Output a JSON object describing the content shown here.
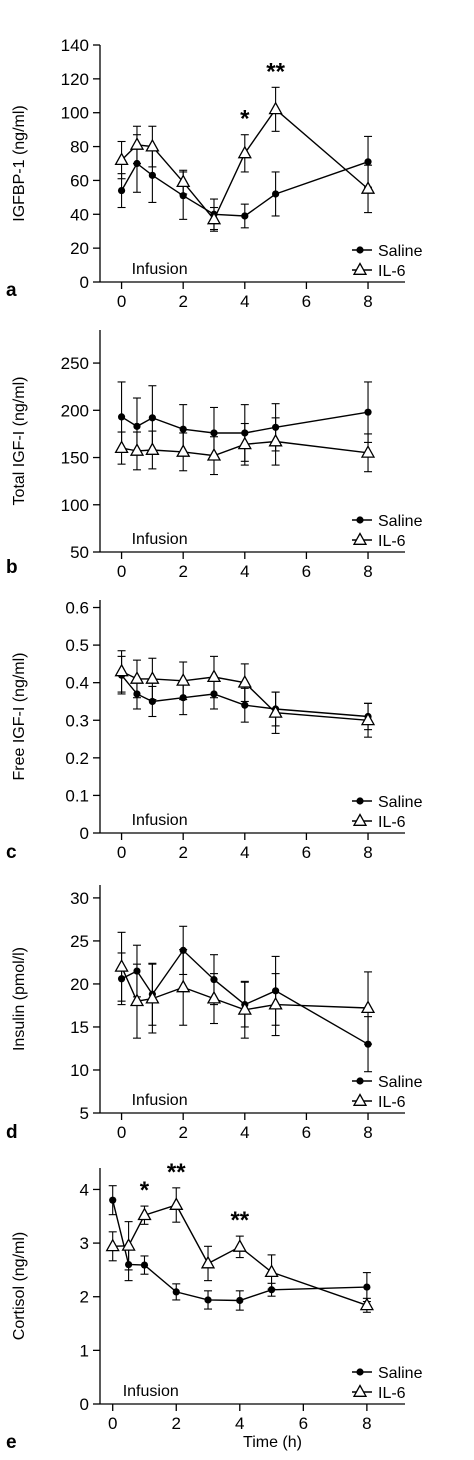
{
  "chart_data": [
    {
      "type": "line",
      "panel": "a",
      "ylabel": "IGFBP-1 (ng/ml)",
      "xlabel": "",
      "xlim": [
        -0.7,
        9.2
      ],
      "ylim": [
        0,
        140
      ],
      "yticks": [
        0,
        20,
        40,
        60,
        80,
        100,
        120,
        140
      ],
      "xticks": [
        0,
        2,
        4,
        6,
        8
      ],
      "annotation": "Infusion",
      "legend_position": "bottom-right",
      "series": [
        {
          "name": "Saline",
          "marker": "circle",
          "x": [
            0,
            0.5,
            1,
            2,
            3,
            4,
            5,
            8
          ],
          "y": [
            54,
            70,
            63,
            51,
            40,
            39,
            52,
            71
          ],
          "err": [
            10,
            17,
            16,
            14,
            9,
            7,
            13,
            15
          ]
        },
        {
          "name": "IL-6",
          "marker": "triangle",
          "x": [
            0,
            0.5,
            1,
            2,
            3,
            4,
            5,
            8
          ],
          "y": [
            72,
            81,
            80,
            59,
            37,
            76,
            102,
            55
          ],
          "err": [
            11,
            11,
            12,
            7,
            7,
            11,
            13,
            14
          ]
        }
      ],
      "significance": [
        {
          "x": 4,
          "label": "*"
        },
        {
          "x": 5,
          "label": "**"
        }
      ]
    },
    {
      "type": "line",
      "panel": "b",
      "ylabel": "Total IGF-I (ng/ml)",
      "xlabel": "",
      "xlim": [
        -0.7,
        9.2
      ],
      "ylim": [
        50,
        285
      ],
      "yticks": [
        50,
        100,
        150,
        200,
        250
      ],
      "xticks": [
        0,
        2,
        4,
        6,
        8
      ],
      "annotation": "Infusion",
      "legend_position": "bottom-right",
      "series": [
        {
          "name": "Saline",
          "marker": "circle",
          "x": [
            0,
            0.5,
            1,
            2,
            3,
            4,
            5,
            8
          ],
          "y": [
            193,
            183,
            192,
            180,
            176,
            176,
            182,
            198
          ],
          "err": [
            37,
            30,
            34,
            26,
            27,
            30,
            25,
            32
          ]
        },
        {
          "name": "IL-6",
          "marker": "triangle",
          "x": [
            0,
            0.5,
            1,
            2,
            3,
            4,
            5,
            8
          ],
          "y": [
            160,
            157,
            158,
            156,
            152,
            164,
            167,
            155
          ],
          "err": [
            17,
            20,
            20,
            20,
            20,
            22,
            25,
            20
          ]
        }
      ],
      "significance": []
    },
    {
      "type": "line",
      "panel": "c",
      "ylabel": "Free IGF-I (ng/ml)",
      "xlabel": "",
      "xlim": [
        -0.7,
        9.2
      ],
      "ylim": [
        0,
        0.62
      ],
      "yticks": [
        0,
        0.1,
        0.2,
        0.3,
        0.4,
        0.5,
        0.6
      ],
      "xticks": [
        0,
        2,
        4,
        6,
        8
      ],
      "annotation": "Infusion",
      "legend_position": "bottom-right",
      "series": [
        {
          "name": "Saline",
          "marker": "circle",
          "x": [
            0,
            0.5,
            1,
            2,
            3,
            4,
            5,
            8
          ],
          "y": [
            0.42,
            0.37,
            0.35,
            0.36,
            0.37,
            0.34,
            0.33,
            0.31
          ],
          "err": [
            0.05,
            0.04,
            0.04,
            0.045,
            0.04,
            0.045,
            0.045,
            0.035
          ]
        },
        {
          "name": "IL-6",
          "marker": "triangle",
          "x": [
            0,
            0.5,
            1,
            2,
            3,
            4,
            5,
            8
          ],
          "y": [
            0.43,
            0.41,
            0.41,
            0.405,
            0.415,
            0.4,
            0.32,
            0.3
          ],
          "err": [
            0.055,
            0.05,
            0.055,
            0.05,
            0.055,
            0.05,
            0.055,
            0.045
          ]
        }
      ],
      "significance": []
    },
    {
      "type": "line",
      "panel": "d",
      "ylabel": "Insulin (pmol/l)",
      "xlabel": "",
      "xlim": [
        -0.7,
        9.2
      ],
      "ylim": [
        5,
        31.5
      ],
      "yticks": [
        5,
        10,
        15,
        20,
        25,
        30
      ],
      "xticks": [
        0,
        2,
        4,
        6,
        8
      ],
      "annotation": "Infusion",
      "legend_position": "bottom-right",
      "series": [
        {
          "name": "Saline",
          "marker": "circle",
          "x": [
            0,
            0.5,
            1,
            2,
            3,
            4,
            5,
            8
          ],
          "y": [
            20.6,
            21.5,
            18.8,
            23.9,
            20.5,
            17.6,
            19.2,
            13.0
          ],
          "err": [
            3,
            3,
            3.6,
            2.8,
            2.9,
            2.6,
            4,
            3.2
          ]
        },
        {
          "name": "IL-6",
          "marker": "triangle",
          "x": [
            0,
            0.5,
            1,
            2,
            3,
            4,
            5,
            8
          ],
          "y": [
            22.0,
            18.0,
            18.3,
            19.6,
            18.3,
            17.0,
            17.6,
            17.2
          ],
          "err": [
            4,
            4.3,
            4,
            4.4,
            2.9,
            3.3,
            3.6,
            4.2
          ]
        }
      ],
      "significance": []
    },
    {
      "type": "line",
      "panel": "e",
      "ylabel": "Cortisol (ng/ml)",
      "xlabel": "Time (h)",
      "xlim": [
        -0.4,
        9.2
      ],
      "ylim": [
        0,
        4.4
      ],
      "yticks": [
        0,
        1,
        2,
        3,
        4
      ],
      "xticks": [
        0,
        2,
        4,
        6,
        8
      ],
      "annotation": "Infusion",
      "legend_position": "bottom-right",
      "series": [
        {
          "name": "Saline",
          "marker": "circle",
          "x": [
            0,
            0.5,
            1,
            2,
            3,
            4,
            5,
            8
          ],
          "y": [
            3.8,
            2.6,
            2.59,
            2.09,
            1.94,
            1.93,
            2.13,
            2.18
          ],
          "err": [
            0.27,
            0.3,
            0.17,
            0.15,
            0.17,
            0.18,
            0.12,
            0.27
          ]
        },
        {
          "name": "IL-6",
          "marker": "triangle",
          "x": [
            0,
            0.5,
            1,
            2,
            3,
            4,
            5,
            8
          ],
          "y": [
            2.94,
            2.95,
            3.52,
            3.71,
            2.62,
            2.93,
            2.46,
            1.84
          ]
        },
        {
          "name": "IL-6 error",
          "err": [
            0.27,
            0.45,
            0.17,
            0.32,
            0.32,
            0.2,
            0.32,
            0.13
          ]
        }
      ],
      "significance": [
        {
          "x": 1,
          "label": "*"
        },
        {
          "x": 2,
          "label": "**"
        },
        {
          "x": 4,
          "label": "**"
        }
      ]
    }
  ]
}
